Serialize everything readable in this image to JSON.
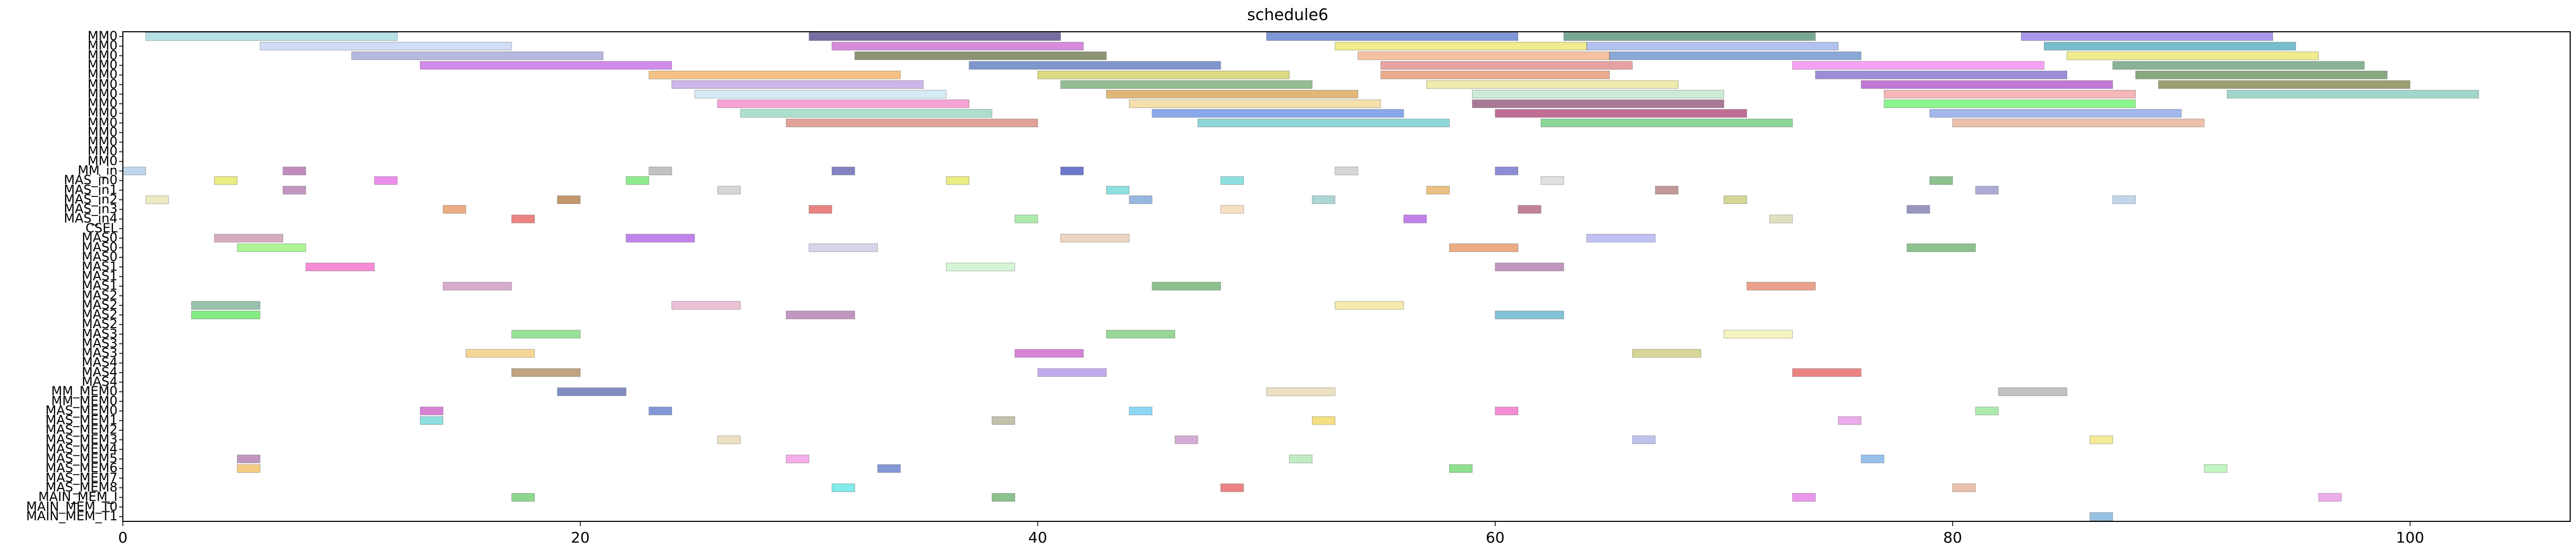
{
  "chart_data": {
    "type": "gantt",
    "title": "schedule6",
    "xlabel": "",
    "ylabel": "",
    "xlim": [
      0,
      107
    ],
    "x_ticks": [
      0,
      20,
      40,
      60,
      80,
      100
    ],
    "grid": false,
    "legend": "none",
    "rows": [
      "MM0",
      "MM0",
      "MM0",
      "MM0",
      "MM0",
      "MM0",
      "MM0",
      "MM0",
      "MM0",
      "MM0",
      "MM0",
      "MM0",
      "MM0",
      "MM0",
      "MM_in",
      "MAS_in0",
      "MAS_in1",
      "MAS_in2",
      "MAS_in3",
      "MAS_in4",
      "CSEL",
      "MAS0",
      "MAS0",
      "MAS0",
      "MAS1",
      "MAS1",
      "MAS1",
      "MAS2",
      "MAS2",
      "MAS2",
      "MAS2",
      "MAS3",
      "MAS3",
      "MAS3",
      "MAS4",
      "MAS4",
      "MAS4",
      "MM_MEM0",
      "MM_MEM0",
      "MAS_MEM0",
      "MAS_MEM1",
      "MAS_MEM2",
      "MAS_MEM3",
      "MAS_MEM4",
      "MAS_MEM5",
      "MAS_MEM6",
      "MAS_MEM7",
      "MAS_MEM8",
      "MAIN_MEM_I",
      "MAIN_MEM_T0",
      "MAIN_MEM_T1"
    ],
    "bars": [
      {
        "row": 0,
        "start": 1,
        "dur": 11,
        "color": "#8fd3d8"
      },
      {
        "row": 0,
        "start": 30,
        "dur": 11,
        "color": "#2d1f6e"
      },
      {
        "row": 0,
        "start": 50,
        "dur": 11,
        "color": "#3b5fc0"
      },
      {
        "row": 0,
        "start": 63,
        "dur": 11,
        "color": "#2f7a5a"
      },
      {
        "row": 0,
        "start": 83,
        "dur": 11,
        "color": "#7b5fe0"
      },
      {
        "row": 1,
        "start": 6,
        "dur": 11,
        "color": "#b8c9f0"
      },
      {
        "row": 1,
        "start": 31,
        "dur": 11,
        "color": "#c24fc7"
      },
      {
        "row": 1,
        "start": 53,
        "dur": 11,
        "color": "#e8e04f"
      },
      {
        "row": 1,
        "start": 64,
        "dur": 11,
        "color": "#8aa0e8"
      },
      {
        "row": 1,
        "start": 84,
        "dur": 11,
        "color": "#2f9ab0"
      },
      {
        "row": 2,
        "start": 10,
        "dur": 11,
        "color": "#9090d0"
      },
      {
        "row": 2,
        "start": 32,
        "dur": 11,
        "color": "#4f5a2a"
      },
      {
        "row": 2,
        "start": 54,
        "dur": 11,
        "color": "#f0a070"
      },
      {
        "row": 2,
        "start": 65,
        "dur": 11,
        "color": "#4a7ac0"
      },
      {
        "row": 2,
        "start": 85,
        "dur": 11,
        "color": "#e8e04f"
      },
      {
        "row": 3,
        "start": 13,
        "dur": 11,
        "color": "#b84fe0"
      },
      {
        "row": 3,
        "start": 37,
        "dur": 11,
        "color": "#3a5fb0"
      },
      {
        "row": 3,
        "start": 55,
        "dur": 11,
        "color": "#d97070"
      },
      {
        "row": 3,
        "start": 73,
        "dur": 11,
        "color": "#f070f0"
      },
      {
        "row": 3,
        "start": 87,
        "dur": 11,
        "color": "#4a8a5a"
      },
      {
        "row": 4,
        "start": 23,
        "dur": 11,
        "color": "#f0a040"
      },
      {
        "row": 4,
        "start": 40,
        "dur": 11,
        "color": "#c8c840"
      },
      {
        "row": 4,
        "start": 55,
        "dur": 10,
        "color": "#e08050"
      },
      {
        "row": 4,
        "start": 74,
        "dur": 11,
        "color": "#6a4fc0"
      },
      {
        "row": 4,
        "start": 88,
        "dur": 11,
        "color": "#4a7a3a"
      },
      {
        "row": 5,
        "start": 24,
        "dur": 11,
        "color": "#b090e0"
      },
      {
        "row": 5,
        "start": 41,
        "dur": 11,
        "color": "#5a9a5a"
      },
      {
        "row": 5,
        "start": 57,
        "dur": 11,
        "color": "#e8e080"
      },
      {
        "row": 5,
        "start": 76,
        "dur": 11,
        "color": "#a030c0"
      },
      {
        "row": 5,
        "start": 89,
        "dur": 11,
        "color": "#6a6a2a"
      },
      {
        "row": 6,
        "start": 25,
        "dur": 11,
        "color": "#c0e0f0"
      },
      {
        "row": 6,
        "start": 43,
        "dur": 11,
        "color": "#d09030"
      },
      {
        "row": 6,
        "start": 59,
        "dur": 11,
        "color": "#b0e0c0"
      },
      {
        "row": 6,
        "start": 77,
        "dur": 11,
        "color": "#f09090"
      },
      {
        "row": 6,
        "start": 92,
        "dur": 11,
        "color": "#70c0b0"
      },
      {
        "row": 7,
        "start": 26,
        "dur": 11,
        "color": "#f070c0"
      },
      {
        "row": 7,
        "start": 44,
        "dur": 11,
        "color": "#f0d080"
      },
      {
        "row": 7,
        "start": 59,
        "dur": 11,
        "color": "#7a2f5a"
      },
      {
        "row": 7,
        "start": 77,
        "dur": 11,
        "color": "#50f050"
      },
      {
        "row": 8,
        "start": 27,
        "dur": 11,
        "color": "#80d0b0"
      },
      {
        "row": 8,
        "start": 45,
        "dur": 11,
        "color": "#4a7ae0"
      },
      {
        "row": 8,
        "start": 60,
        "dur": 11,
        "color": "#a02060"
      },
      {
        "row": 8,
        "start": 79,
        "dur": 11,
        "color": "#7090e0"
      },
      {
        "row": 9,
        "start": 29,
        "dur": 11,
        "color": "#d07060"
      },
      {
        "row": 9,
        "start": 47,
        "dur": 11,
        "color": "#4fc0c0"
      },
      {
        "row": 9,
        "start": 62,
        "dur": 11,
        "color": "#50c060"
      },
      {
        "row": 9,
        "start": 80,
        "dur": 11,
        "color": "#e0a080"
      },
      {
        "row": 14,
        "start": 0,
        "dur": 1,
        "color": "#9ac0e0"
      },
      {
        "row": 14,
        "start": 7,
        "dur": 1,
        "color": "#a04f9a"
      },
      {
        "row": 14,
        "start": 23,
        "dur": 1,
        "color": "#a0a0a0"
      },
      {
        "row": 14,
        "start": 31,
        "dur": 1,
        "color": "#4040a0"
      },
      {
        "row": 14,
        "start": 41,
        "dur": 1,
        "color": "#2030b0"
      },
      {
        "row": 14,
        "start": 53,
        "dur": 1,
        "color": "#c0c0c0"
      },
      {
        "row": 14,
        "start": 60,
        "dur": 1,
        "color": "#5050c0"
      },
      {
        "row": 15,
        "start": 4,
        "dur": 1,
        "color": "#e0e040"
      },
      {
        "row": 15,
        "start": 11,
        "dur": 1,
        "color": "#e050e0"
      },
      {
        "row": 15,
        "start": 22,
        "dur": 1,
        "color": "#50e050"
      },
      {
        "row": 15,
        "start": 36,
        "dur": 1,
        "color": "#e0e040"
      },
      {
        "row": 15,
        "start": 48,
        "dur": 1,
        "color": "#50d0d0"
      },
      {
        "row": 15,
        "start": 62,
        "dur": 1,
        "color": "#d0d0d0"
      },
      {
        "row": 15,
        "start": 79,
        "dur": 1,
        "color": "#50a050"
      },
      {
        "row": 16,
        "start": 7,
        "dur": 1,
        "color": "#a060a0"
      },
      {
        "row": 16,
        "start": 26,
        "dur": 1,
        "color": "#c0c0c0"
      },
      {
        "row": 16,
        "start": 43,
        "dur": 1,
        "color": "#50d0d0"
      },
      {
        "row": 16,
        "start": 57,
        "dur": 1,
        "color": "#e0a040"
      },
      {
        "row": 16,
        "start": 67,
        "dur": 1,
        "color": "#a06060"
      },
      {
        "row": 16,
        "start": 81,
        "dur": 1,
        "color": "#8080c0"
      },
      {
        "row": 17,
        "start": 1,
        "dur": 1,
        "color": "#e0e0a0"
      },
      {
        "row": 17,
        "start": 19,
        "dur": 1,
        "color": "#a06020"
      },
      {
        "row": 17,
        "start": 44,
        "dur": 1,
        "color": "#6090d0"
      },
      {
        "row": 17,
        "start": 52,
        "dur": 1,
        "color": "#80c0c0"
      },
      {
        "row": 17,
        "start": 70,
        "dur": 1,
        "color": "#c0c060"
      },
      {
        "row": 17,
        "start": 87,
        "dur": 1,
        "color": "#a0c0e0"
      },
      {
        "row": 18,
        "start": 14,
        "dur": 1,
        "color": "#e08040"
      },
      {
        "row": 18,
        "start": 30,
        "dur": 1,
        "color": "#e04040"
      },
      {
        "row": 18,
        "start": 48,
        "dur": 1,
        "color": "#f0d0a0"
      },
      {
        "row": 18,
        "start": 61,
        "dur": 1,
        "color": "#a04060"
      },
      {
        "row": 18,
        "start": 78,
        "dur": 1,
        "color": "#6060a0"
      },
      {
        "row": 19,
        "start": 17,
        "dur": 1,
        "color": "#e04040"
      },
      {
        "row": 19,
        "start": 39,
        "dur": 1,
        "color": "#80e080"
      },
      {
        "row": 19,
        "start": 56,
        "dur": 1,
        "color": "#a040e0"
      },
      {
        "row": 19,
        "start": 72,
        "dur": 1,
        "color": "#d0d0a0"
      },
      {
        "row": 21,
        "start": 4,
        "dur": 3,
        "color": "#c080a0"
      },
      {
        "row": 21,
        "start": 22,
        "dur": 3,
        "color": "#a040e0"
      },
      {
        "row": 21,
        "start": 41,
        "dur": 3,
        "color": "#e0c0a0"
      },
      {
        "row": 21,
        "start": 64,
        "dur": 3,
        "color": "#a0a0f0"
      },
      {
        "row": 22,
        "start": 5,
        "dur": 3,
        "color": "#80f060"
      },
      {
        "row": 22,
        "start": 30,
        "dur": 3,
        "color": "#c0c0e0"
      },
      {
        "row": 22,
        "start": 58,
        "dur": 3,
        "color": "#e08040"
      },
      {
        "row": 22,
        "start": 78,
        "dur": 3,
        "color": "#50a050"
      },
      {
        "row": 24,
        "start": 8,
        "dur": 3,
        "color": "#f050c0"
      },
      {
        "row": 24,
        "start": 36,
        "dur": 3,
        "color": "#c0f0c0"
      },
      {
        "row": 24,
        "start": 60,
        "dur": 3,
        "color": "#a060a0"
      },
      {
        "row": 26,
        "start": 14,
        "dur": 3,
        "color": "#c080b0"
      },
      {
        "row": 26,
        "start": 45,
        "dur": 3,
        "color": "#50a050"
      },
      {
        "row": 26,
        "start": 71,
        "dur": 3,
        "color": "#e07050"
      },
      {
        "row": 28,
        "start": 3,
        "dur": 3,
        "color": "#60a080"
      },
      {
        "row": 28,
        "start": 24,
        "dur": 3,
        "color": "#e0a0c0"
      },
      {
        "row": 28,
        "start": 53,
        "dur": 3,
        "color": "#f0e080"
      },
      {
        "row": 29,
        "start": 3,
        "dur": 3,
        "color": "#40e040"
      },
      {
        "row": 29,
        "start": 29,
        "dur": 3,
        "color": "#a060a0"
      },
      {
        "row": 29,
        "start": 60,
        "dur": 3,
        "color": "#40a0c0"
      },
      {
        "row": 31,
        "start": 17,
        "dur": 3,
        "color": "#60d060"
      },
      {
        "row": 31,
        "start": 43,
        "dur": 3,
        "color": "#60c060"
      },
      {
        "row": 31,
        "start": 70,
        "dur": 3,
        "color": "#f0f0a0"
      },
      {
        "row": 33,
        "start": 15,
        "dur": 3,
        "color": "#f0c060"
      },
      {
        "row": 33,
        "start": 39,
        "dur": 3,
        "color": "#c040c0"
      },
      {
        "row": 33,
        "start": 66,
        "dur": 3,
        "color": "#c0c060"
      },
      {
        "row": 35,
        "start": 17,
        "dur": 3,
        "color": "#a07040"
      },
      {
        "row": 35,
        "start": 40,
        "dur": 3,
        "color": "#a080e0"
      },
      {
        "row": 35,
        "start": 73,
        "dur": 3,
        "color": "#e04040"
      },
      {
        "row": 37,
        "start": 19,
        "dur": 3,
        "color": "#4050a0"
      },
      {
        "row": 37,
        "start": 50,
        "dur": 3,
        "color": "#e0d0a0"
      },
      {
        "row": 37,
        "start": 82,
        "dur": 3,
        "color": "#a0a0a0"
      },
      {
        "row": 39,
        "start": 13,
        "dur": 1,
        "color": "#c040c0"
      },
      {
        "row": 39,
        "start": 23,
        "dur": 1,
        "color": "#4060c0"
      },
      {
        "row": 39,
        "start": 44,
        "dur": 1,
        "color": "#50c0f0"
      },
      {
        "row": 39,
        "start": 60,
        "dur": 1,
        "color": "#f050c0"
      },
      {
        "row": 39,
        "start": 81,
        "dur": 1,
        "color": "#80e080"
      },
      {
        "row": 40,
        "start": 13,
        "dur": 1,
        "color": "#50d0d0"
      },
      {
        "row": 40,
        "start": 38,
        "dur": 1,
        "color": "#a0a080"
      },
      {
        "row": 40,
        "start": 52,
        "dur": 1,
        "color": "#f0d040"
      },
      {
        "row": 40,
        "start": 75,
        "dur": 1,
        "color": "#e080e0"
      },
      {
        "row": 42,
        "start": 26,
        "dur": 1,
        "color": "#e0d0a0"
      },
      {
        "row": 42,
        "start": 46,
        "dur": 1,
        "color": "#c080c0"
      },
      {
        "row": 42,
        "start": 66,
        "dur": 1,
        "color": "#a0a0e0"
      },
      {
        "row": 42,
        "start": 86,
        "dur": 1,
        "color": "#f0e060"
      },
      {
        "row": 44,
        "start": 5,
        "dur": 1,
        "color": "#a060a0"
      },
      {
        "row": 44,
        "start": 29,
        "dur": 1,
        "color": "#f080e0"
      },
      {
        "row": 44,
        "start": 51,
        "dur": 1,
        "color": "#a0e0a0"
      },
      {
        "row": 44,
        "start": 76,
        "dur": 1,
        "color": "#60a0e0"
      },
      {
        "row": 45,
        "start": 5,
        "dur": 1,
        "color": "#f0b040"
      },
      {
        "row": 45,
        "start": 33,
        "dur": 1,
        "color": "#4060c0"
      },
      {
        "row": 45,
        "start": 58,
        "dur": 1,
        "color": "#50d050"
      },
      {
        "row": 45,
        "start": 91,
        "dur": 1,
        "color": "#a0f0a0"
      },
      {
        "row": 47,
        "start": 31,
        "dur": 1,
        "color": "#40e0e0"
      },
      {
        "row": 47,
        "start": 48,
        "dur": 1,
        "color": "#e04040"
      },
      {
        "row": 47,
        "start": 80,
        "dur": 1,
        "color": "#e0a080"
      },
      {
        "row": 48,
        "start": 17,
        "dur": 1,
        "color": "#50c050"
      },
      {
        "row": 48,
        "start": 38,
        "dur": 1,
        "color": "#50a050"
      },
      {
        "row": 48,
        "start": 73,
        "dur": 1,
        "color": "#e060e0"
      },
      {
        "row": 48,
        "start": 96,
        "dur": 1,
        "color": "#e080e0"
      },
      {
        "row": 50,
        "start": 86,
        "dur": 1,
        "color": "#60a0d0"
      }
    ]
  }
}
